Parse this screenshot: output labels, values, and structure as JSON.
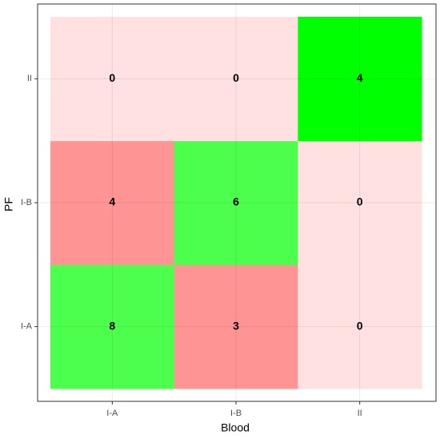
{
  "chart_data": {
    "type": "heatmap",
    "x_label": "Blood",
    "y_label": "PF",
    "x_categories": [
      "I-A",
      "I-B",
      "II"
    ],
    "y_categories": [
      "I-A",
      "I-B",
      "II"
    ],
    "values": [
      [
        8,
        3,
        0
      ],
      [
        4,
        6,
        0
      ],
      [
        0,
        0,
        4
      ]
    ],
    "colors": [
      [
        "#4dff4d",
        "#ff9494",
        "#ffe1e1"
      ],
      [
        "#ff9494",
        "#4dff4d",
        "#ffe1e1"
      ],
      [
        "#ffe1e1",
        "#ffe1e1",
        "#00ff00"
      ]
    ],
    "grid": true
  }
}
